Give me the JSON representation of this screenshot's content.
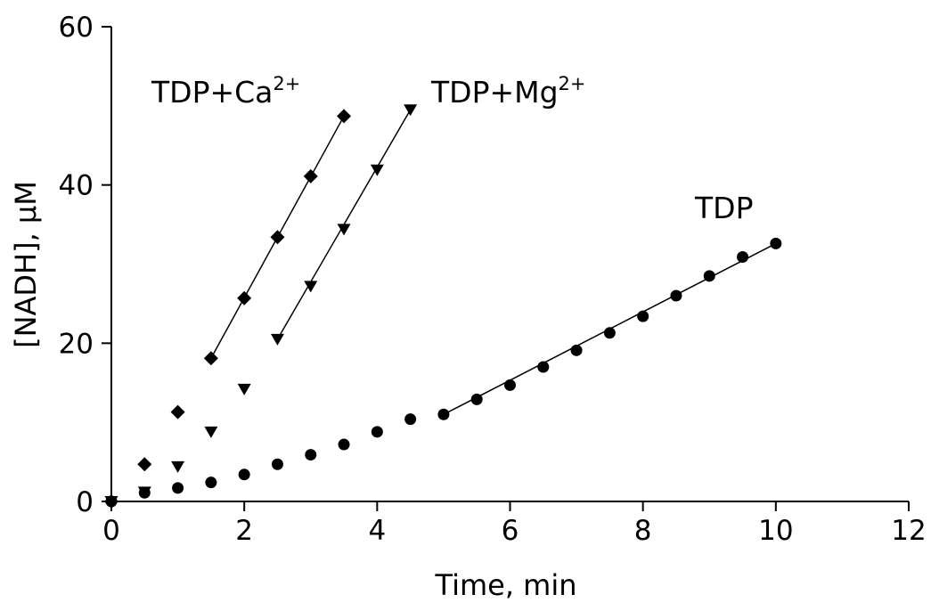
{
  "chart_data": {
    "type": "scatter",
    "title": "",
    "xlabel": "Time, min",
    "ylabel": "[NADH], μM",
    "xlim": [
      0,
      12
    ],
    "ylim": [
      0,
      60
    ],
    "xticks": [
      0,
      2,
      4,
      6,
      8,
      10,
      12
    ],
    "yticks": [
      0,
      20,
      40,
      60
    ],
    "grid": false,
    "series": [
      {
        "label_base": "TDP+Ca",
        "label_sup": "2+",
        "marker": "diamond",
        "x": [
          0,
          0.5,
          1.0,
          1.5,
          2.0,
          2.5,
          3.0,
          3.5
        ],
        "y": [
          0,
          4.7,
          11.3,
          18.1,
          25.7,
          33.4,
          41.1,
          48.7
        ],
        "fit_line": {
          "x": [
            1.5,
            3.5
          ],
          "y": [
            18.1,
            48.7
          ]
        }
      },
      {
        "label_base": "TDP+Mg",
        "label_sup": "2+",
        "marker": "triangle-down",
        "x": [
          0,
          0.5,
          1.0,
          1.5,
          2.0,
          2.5,
          3.0,
          3.5,
          4.0,
          4.5
        ],
        "y": [
          0,
          1.2,
          4.4,
          8.8,
          14.2,
          20.5,
          27.2,
          34.4,
          41.9,
          49.5
        ],
        "fit_line": {
          "x": [
            2.5,
            4.5
          ],
          "y": [
            20.5,
            49.5
          ]
        }
      },
      {
        "label_base": "TDP",
        "label_sup": "",
        "marker": "circle",
        "x": [
          0,
          0.5,
          1.0,
          1.5,
          2.0,
          2.5,
          3.0,
          3.5,
          4.0,
          4.5,
          5.0,
          5.5,
          6.0,
          6.5,
          7.0,
          7.5,
          8.0,
          8.5,
          9.0,
          9.5,
          10.0
        ],
        "y": [
          0,
          1.1,
          1.7,
          2.4,
          3.4,
          4.7,
          5.9,
          7.2,
          8.8,
          10.4,
          11.0,
          12.9,
          14.7,
          17.0,
          19.1,
          21.3,
          23.4,
          26.0,
          28.5,
          30.9,
          32.6
        ],
        "fit_line": {
          "x": [
            5.0,
            10.0
          ],
          "y": [
            11.0,
            32.6
          ]
        }
      }
    ]
  }
}
